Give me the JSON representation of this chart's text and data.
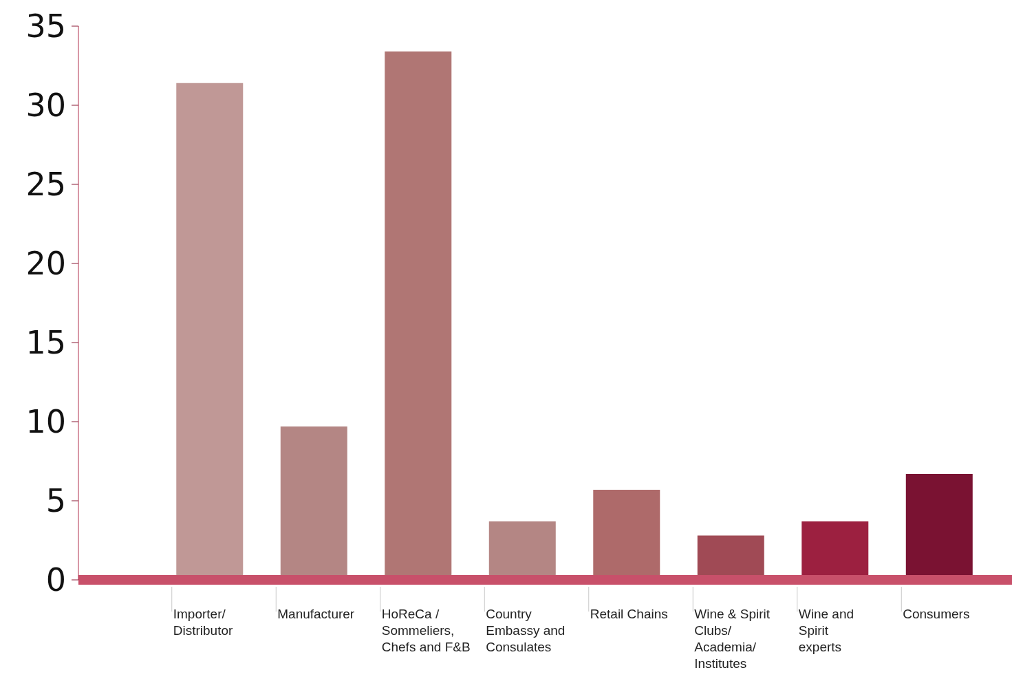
{
  "chart_data": {
    "type": "bar",
    "categories": [
      "Importer/ Distributor",
      "Manufacturer",
      "HoReCa / Sommeliers, Chefs and F&B",
      "Country Embassy and Consulates",
      "Retail Chains",
      "Wine & Spirit Clubs/ Academia/ Institutes",
      "Wine and Spirit experts",
      "Consumers"
    ],
    "values": [
      31.4,
      9.7,
      33.4,
      3.7,
      5.7,
      2.8,
      3.7,
      6.7
    ],
    "colors": [
      "#c09896",
      "#b48684",
      "#b07674",
      "#b48684",
      "#ae6a6a",
      "#a04a55",
      "#9c2040",
      "#7a1232"
    ],
    "ylim": [
      0,
      35
    ],
    "yticks": [
      0,
      5,
      10,
      15,
      20,
      25,
      30,
      35
    ]
  }
}
